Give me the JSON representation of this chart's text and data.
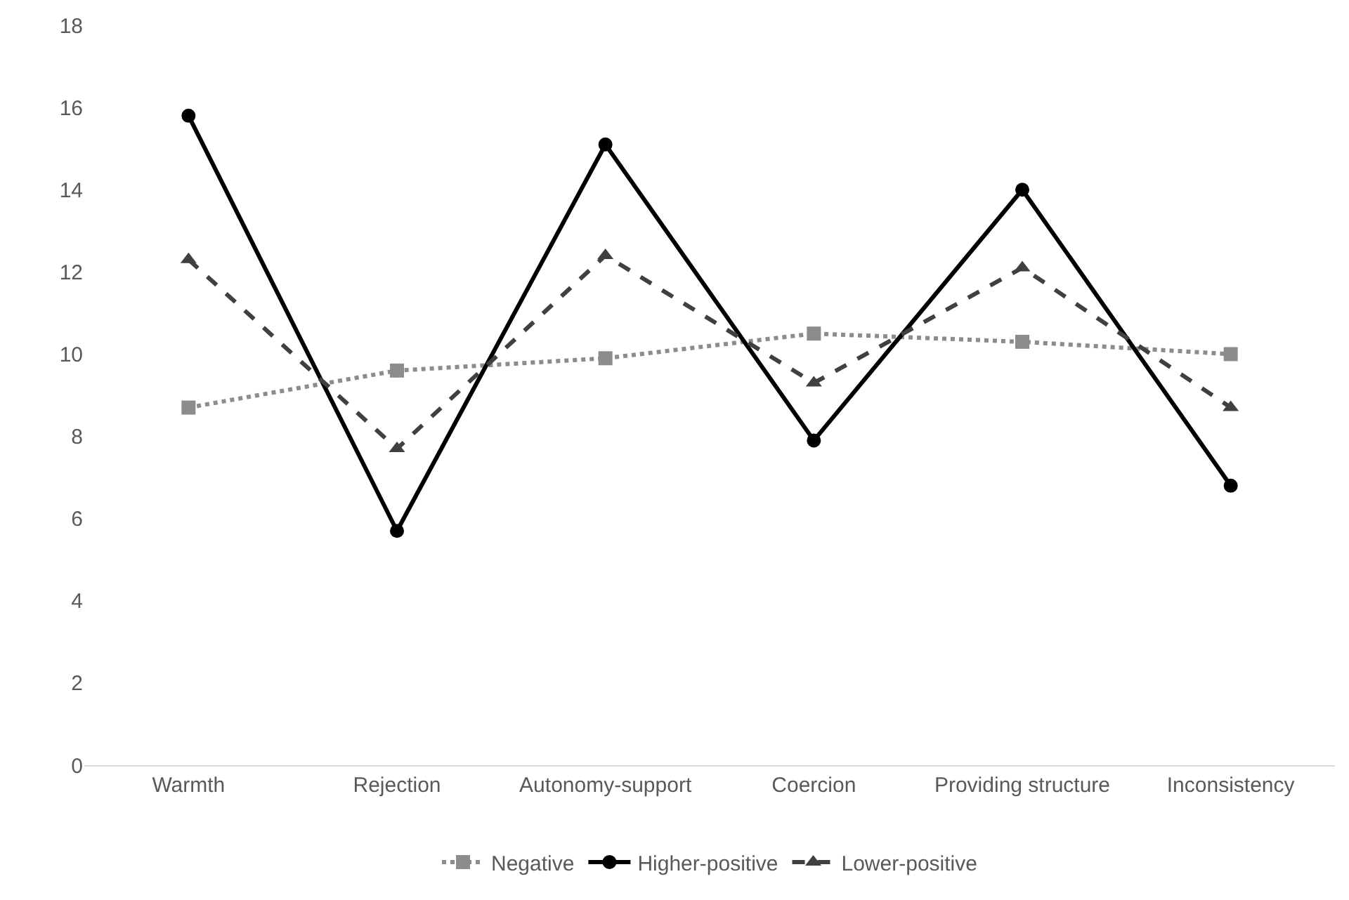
{
  "chart_data": {
    "type": "line",
    "categories": [
      "Warmth",
      "Rejection",
      "Autonomy-support",
      "Coercion",
      "Providing structure",
      "Inconsistency"
    ],
    "series": [
      {
        "name": "Negative",
        "color": "#8c8c8c",
        "values": [
          8.7,
          9.6,
          9.9,
          10.5,
          10.3,
          10.0
        ],
        "marker": "square",
        "line_style": "dotted"
      },
      {
        "name": "Higher-positive",
        "color": "#000000",
        "values": [
          15.8,
          5.7,
          15.1,
          7.9,
          14.0,
          6.8
        ],
        "marker": "circle",
        "line_style": "solid"
      },
      {
        "name": "Lower-positive",
        "color": "#404040",
        "values": [
          12.3,
          7.7,
          12.4,
          9.3,
          12.1,
          8.7
        ],
        "marker": "triangle",
        "line_style": "dashed"
      }
    ],
    "ylim": [
      0,
      18
    ],
    "yticks": [
      0,
      2,
      4,
      6,
      8,
      10,
      12,
      14,
      16,
      18
    ],
    "grid": false,
    "legend": "bottom"
  }
}
